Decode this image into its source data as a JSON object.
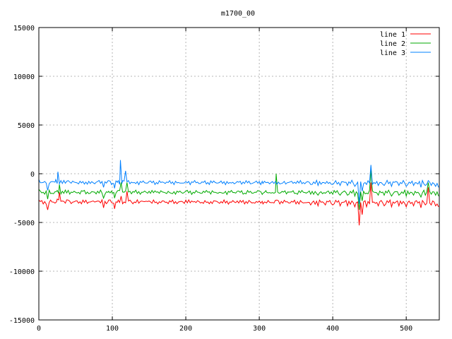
{
  "chart_data": {
    "type": "line",
    "title": "m1700_00",
    "xlabel": "",
    "ylabel": "",
    "xlim": [
      0,
      545
    ],
    "ylim": [
      -15000,
      15000
    ],
    "xticks": [
      0,
      100,
      200,
      300,
      400,
      500
    ],
    "yticks": [
      -15000,
      -10000,
      -5000,
      0,
      5000,
      10000,
      15000
    ],
    "grid": true,
    "legend_position": "top-right",
    "series": [
      {
        "name": "line 1",
        "color": "#ff0000",
        "base": -2900,
        "points": [
          [
            0,
            -2700
          ],
          [
            6,
            -3100
          ],
          [
            12,
            -3700
          ],
          [
            18,
            -2900
          ],
          [
            25,
            -2600
          ],
          [
            28,
            -1900
          ],
          [
            32,
            -2800
          ],
          [
            40,
            -2700
          ],
          [
            50,
            -2800
          ],
          [
            60,
            -2700
          ],
          [
            70,
            -2900
          ],
          [
            80,
            -2800
          ],
          [
            88,
            -3500
          ],
          [
            95,
            -2700
          ],
          [
            100,
            -3000
          ],
          [
            103,
            -3600
          ],
          [
            108,
            -2700
          ],
          [
            112,
            -2300
          ],
          [
            116,
            -2900
          ],
          [
            120,
            -1800
          ],
          [
            124,
            -2700
          ],
          [
            130,
            -2900
          ],
          [
            140,
            -2800
          ],
          [
            150,
            -2800
          ],
          [
            160,
            -2900
          ],
          [
            170,
            -2800
          ],
          [
            180,
            -2900
          ],
          [
            190,
            -2900
          ],
          [
            200,
            -2700
          ],
          [
            210,
            -2900
          ],
          [
            220,
            -3000
          ],
          [
            230,
            -2900
          ],
          [
            240,
            -2800
          ],
          [
            250,
            -3000
          ],
          [
            260,
            -2900
          ],
          [
            270,
            -2800
          ],
          [
            280,
            -3100
          ],
          [
            290,
            -3000
          ],
          [
            300,
            -2800
          ],
          [
            305,
            -3100
          ],
          [
            310,
            -3000
          ],
          [
            320,
            -3000
          ],
          [
            324,
            -2700
          ],
          [
            328,
            -3100
          ],
          [
            340,
            -3000
          ],
          [
            350,
            -3100
          ],
          [
            360,
            -3000
          ],
          [
            370,
            -3200
          ],
          [
            380,
            -3300
          ],
          [
            390,
            -3200
          ],
          [
            400,
            -3200
          ],
          [
            410,
            -3300
          ],
          [
            420,
            -3300
          ],
          [
            430,
            -3400
          ],
          [
            436,
            -5300
          ],
          [
            440,
            -4200
          ],
          [
            446,
            -3400
          ],
          [
            452,
            -900
          ],
          [
            456,
            -2900
          ],
          [
            462,
            -3300
          ],
          [
            470,
            -3300
          ],
          [
            480,
            -3400
          ],
          [
            490,
            -3300
          ],
          [
            500,
            -3400
          ],
          [
            510,
            -3300
          ],
          [
            520,
            -3500
          ],
          [
            526,
            -3200
          ],
          [
            530,
            -1400
          ],
          [
            534,
            -3200
          ],
          [
            540,
            -3300
          ],
          [
            544,
            -3400
          ]
        ]
      },
      {
        "name": "line 2",
        "color": "#00aa00",
        "base": -1900,
        "points": [
          [
            0,
            -1600
          ],
          [
            6,
            -1900
          ],
          [
            12,
            -2600
          ],
          [
            18,
            -2000
          ],
          [
            25,
            -1700
          ],
          [
            28,
            -1100
          ],
          [
            32,
            -1800
          ],
          [
            40,
            -1700
          ],
          [
            50,
            -1900
          ],
          [
            60,
            -1800
          ],
          [
            70,
            -2000
          ],
          [
            80,
            -1800
          ],
          [
            88,
            -2500
          ],
          [
            95,
            -1800
          ],
          [
            100,
            -2000
          ],
          [
            103,
            -2500
          ],
          [
            108,
            -1700
          ],
          [
            112,
            -900
          ],
          [
            116,
            -1900
          ],
          [
            120,
            -900
          ],
          [
            124,
            -1800
          ],
          [
            130,
            -1900
          ],
          [
            140,
            -1900
          ],
          [
            150,
            -1800
          ],
          [
            160,
            -1900
          ],
          [
            170,
            -1900
          ],
          [
            180,
            -2000
          ],
          [
            190,
            -1900
          ],
          [
            200,
            -1800
          ],
          [
            210,
            -1900
          ],
          [
            220,
            -2000
          ],
          [
            230,
            -1900
          ],
          [
            240,
            -1900
          ],
          [
            250,
            -2000
          ],
          [
            260,
            -1900
          ],
          [
            270,
            -1800
          ],
          [
            280,
            -2000
          ],
          [
            290,
            -2000
          ],
          [
            300,
            -1800
          ],
          [
            305,
            -2000
          ],
          [
            310,
            -1900
          ],
          [
            320,
            -2000
          ],
          [
            323,
            0
          ],
          [
            327,
            -2000
          ],
          [
            340,
            -1900
          ],
          [
            350,
            -2000
          ],
          [
            360,
            -1900
          ],
          [
            370,
            -2100
          ],
          [
            380,
            -2200
          ],
          [
            390,
            -2000
          ],
          [
            400,
            -2100
          ],
          [
            410,
            -2200
          ],
          [
            420,
            -2200
          ],
          [
            430,
            -2300
          ],
          [
            436,
            -3700
          ],
          [
            440,
            -2800
          ],
          [
            446,
            -2000
          ],
          [
            452,
            400
          ],
          [
            456,
            -1900
          ],
          [
            462,
            -2200
          ],
          [
            470,
            -2200
          ],
          [
            480,
            -2300
          ],
          [
            490,
            -2200
          ],
          [
            500,
            -2300
          ],
          [
            510,
            -2200
          ],
          [
            520,
            -2400
          ],
          [
            526,
            -2200
          ],
          [
            530,
            -900
          ],
          [
            534,
            -2100
          ],
          [
            540,
            -2200
          ],
          [
            544,
            -2300
          ]
        ]
      },
      {
        "name": "line 3",
        "color": "#0080ff",
        "base": -900,
        "points": [
          [
            0,
            -600
          ],
          [
            6,
            -900
          ],
          [
            12,
            -1700
          ],
          [
            18,
            -800
          ],
          [
            23,
            -600
          ],
          [
            26,
            200
          ],
          [
            30,
            -700
          ],
          [
            40,
            -700
          ],
          [
            50,
            -900
          ],
          [
            60,
            -800
          ],
          [
            70,
            -1000
          ],
          [
            80,
            -800
          ],
          [
            88,
            -1400
          ],
          [
            95,
            -700
          ],
          [
            100,
            -1000
          ],
          [
            103,
            -1500
          ],
          [
            108,
            -700
          ],
          [
            111,
            1400
          ],
          [
            114,
            -700
          ],
          [
            118,
            300
          ],
          [
            122,
            -700
          ],
          [
            130,
            -900
          ],
          [
            140,
            -900
          ],
          [
            150,
            -800
          ],
          [
            160,
            -900
          ],
          [
            170,
            -900
          ],
          [
            180,
            -1000
          ],
          [
            190,
            -900
          ],
          [
            200,
            -800
          ],
          [
            210,
            -900
          ],
          [
            220,
            -1000
          ],
          [
            230,
            -900
          ],
          [
            240,
            -900
          ],
          [
            250,
            -1000
          ],
          [
            260,
            -900
          ],
          [
            270,
            -800
          ],
          [
            280,
            -1000
          ],
          [
            290,
            -1000
          ],
          [
            300,
            -800
          ],
          [
            305,
            -1000
          ],
          [
            310,
            -900
          ],
          [
            320,
            -1000
          ],
          [
            330,
            -1000
          ],
          [
            340,
            -900
          ],
          [
            350,
            -1000
          ],
          [
            360,
            -900
          ],
          [
            370,
            -1100
          ],
          [
            380,
            -1200
          ],
          [
            390,
            -1000
          ],
          [
            400,
            -1100
          ],
          [
            410,
            -1200
          ],
          [
            420,
            -1200
          ],
          [
            430,
            -1300
          ],
          [
            436,
            -3100
          ],
          [
            440,
            -1800
          ],
          [
            446,
            -1100
          ],
          [
            452,
            900
          ],
          [
            456,
            -900
          ],
          [
            462,
            -1200
          ],
          [
            470,
            -1200
          ],
          [
            480,
            -1300
          ],
          [
            490,
            -1200
          ],
          [
            500,
            -1300
          ],
          [
            510,
            -1200
          ],
          [
            520,
            -1400
          ],
          [
            526,
            -1200
          ],
          [
            530,
            -700
          ],
          [
            534,
            -1200
          ],
          [
            540,
            -1300
          ],
          [
            544,
            -1400
          ]
        ]
      }
    ]
  }
}
